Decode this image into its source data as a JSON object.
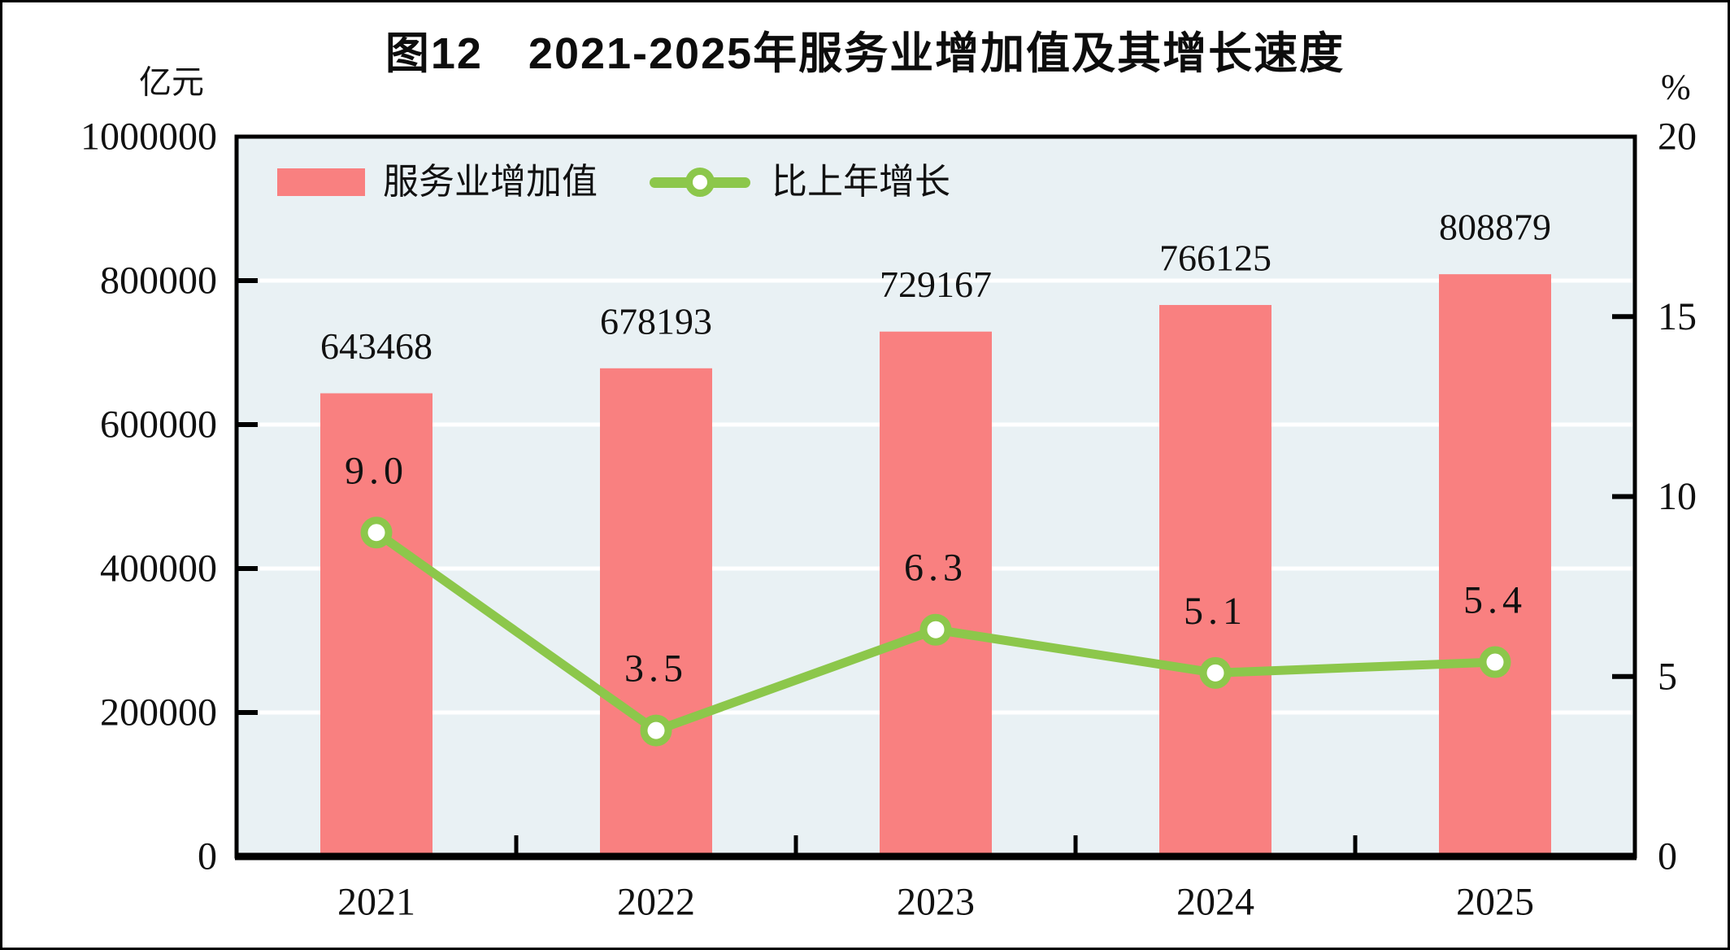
{
  "chart_data": {
    "type": "combo-bar-line",
    "title": "图12　2021-2025年服务业增加值及其增长速度",
    "categories": [
      "2021",
      "2022",
      "2023",
      "2024",
      "2025"
    ],
    "series": [
      {
        "name": "服务业增加值",
        "type": "bar",
        "axis": "left",
        "color": "#F98080",
        "values": [
          643468,
          678193,
          729167,
          766125,
          808879
        ],
        "labels": [
          "643468",
          "678193",
          "729167",
          "766125",
          "808879"
        ]
      },
      {
        "name": "比上年增长",
        "type": "line",
        "axis": "right",
        "color": "#8CC74B",
        "marker": "white-circle-green-ring",
        "values": [
          9.0,
          3.5,
          6.3,
          5.1,
          5.4
        ],
        "labels": [
          "9.0",
          "3.5",
          "6.3",
          "5.1",
          "5.4"
        ]
      }
    ],
    "left_axis": {
      "unit": "亿元",
      "min": 0,
      "max": 1000000,
      "step": 200000,
      "tick_labels": [
        "0",
        "200000",
        "400000",
        "600000",
        "800000",
        "1000000"
      ]
    },
    "right_axis": {
      "unit": "%",
      "min": 0,
      "max": 20,
      "step": 5,
      "tick_labels": [
        "0",
        "5",
        "10",
        "15",
        "20"
      ]
    },
    "legend": {
      "position": "top-left-inside",
      "items": [
        "服务业增加值",
        "比上年增长"
      ]
    },
    "grid": true,
    "colors": {
      "plot_bg": "#E9F1F4",
      "gridline": "#FFFFFF",
      "bar": "#F98080",
      "line": "#8CC74B",
      "marker_fill": "#FFFFFF",
      "text": "#111111",
      "axis": "#000000"
    }
  }
}
